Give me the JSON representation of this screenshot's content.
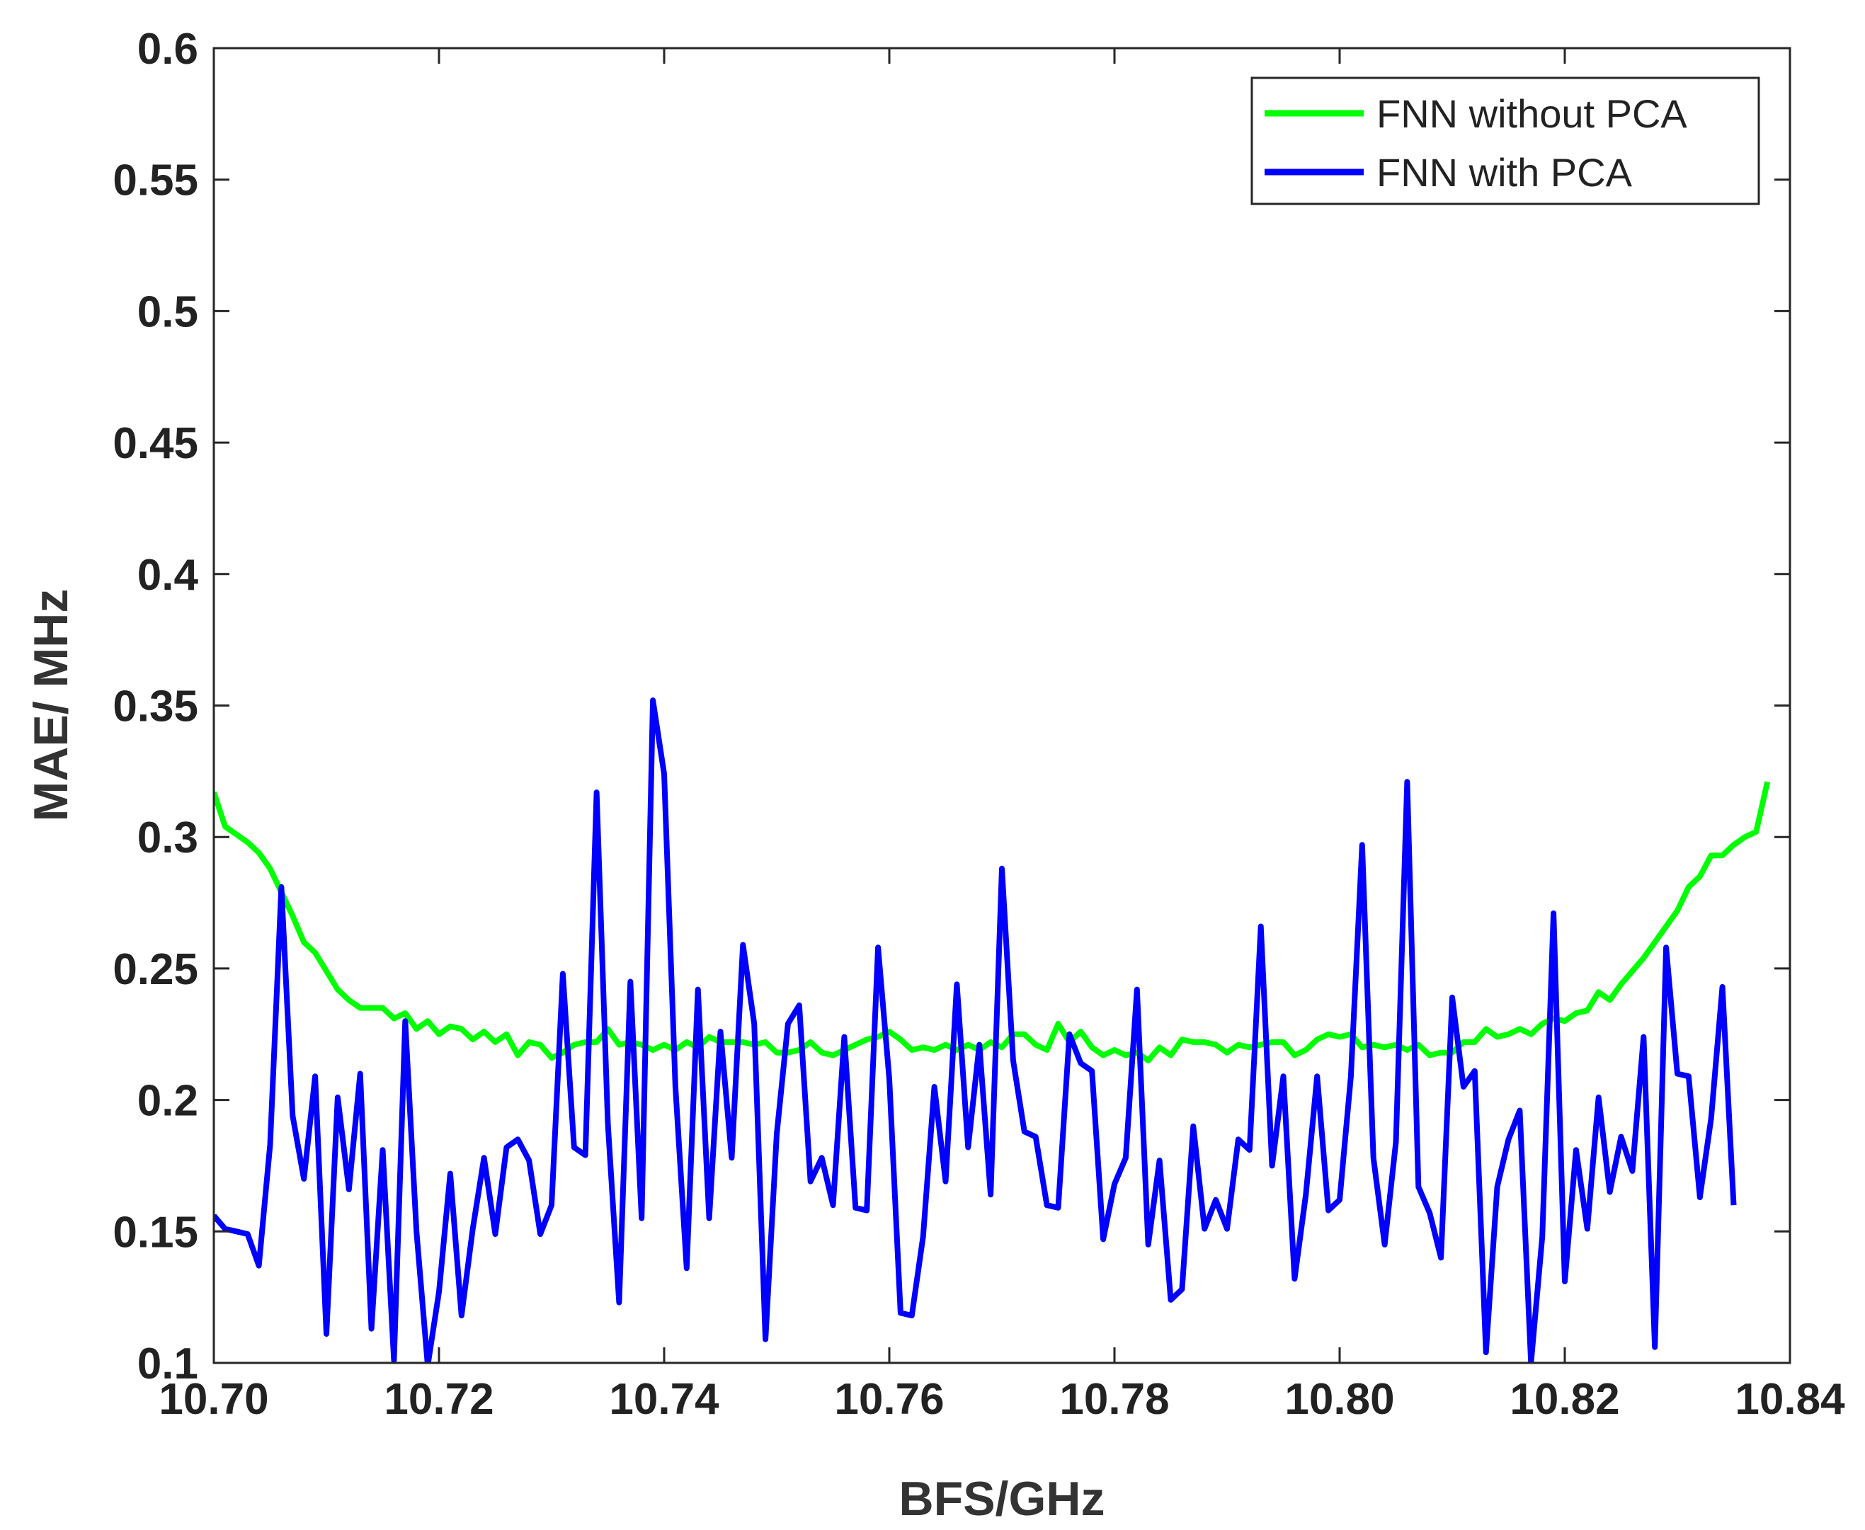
{
  "chart_data": {
    "type": "line",
    "xlabel": "BFS/GHz",
    "ylabel": "MAE/ MHz",
    "xlim": [
      10.7,
      10.84
    ],
    "ylim": [
      0.1,
      0.6
    ],
    "xticks": [
      "10.70",
      "10.72",
      "10.74",
      "10.76",
      "10.78",
      "10.80",
      "10.82",
      "10.84"
    ],
    "yticks": [
      "0.1",
      "0.15",
      "0.2",
      "0.25",
      "0.3",
      "0.35",
      "0.4",
      "0.45",
      "0.5",
      "0.55",
      "0.6"
    ],
    "grid": false,
    "legend_position": "top-right",
    "series": [
      {
        "name": "FNN without PCA",
        "color": "#00ff00",
        "points": [
          [
            10.7,
            0.317
          ],
          [
            10.701,
            0.304
          ],
          [
            10.702,
            0.301
          ],
          [
            10.703,
            0.298
          ],
          [
            10.704,
            0.294
          ],
          [
            10.705,
            0.288
          ],
          [
            10.706,
            0.279
          ],
          [
            10.707,
            0.27
          ],
          [
            10.708,
            0.26
          ],
          [
            10.709,
            0.256
          ],
          [
            10.71,
            0.249
          ],
          [
            10.711,
            0.242
          ],
          [
            10.712,
            0.238
          ],
          [
            10.713,
            0.235
          ],
          [
            10.714,
            0.235
          ],
          [
            10.715,
            0.235
          ],
          [
            10.716,
            0.231
          ],
          [
            10.717,
            0.233
          ],
          [
            10.718,
            0.227
          ],
          [
            10.719,
            0.23
          ],
          [
            10.72,
            0.225
          ],
          [
            10.721,
            0.228
          ],
          [
            10.722,
            0.227
          ],
          [
            10.723,
            0.223
          ],
          [
            10.724,
            0.226
          ],
          [
            10.725,
            0.222
          ],
          [
            10.726,
            0.225
          ],
          [
            10.727,
            0.217
          ],
          [
            10.728,
            0.222
          ],
          [
            10.729,
            0.221
          ],
          [
            10.73,
            0.216
          ],
          [
            10.731,
            0.218
          ],
          [
            10.732,
            0.221
          ],
          [
            10.733,
            0.222
          ],
          [
            10.734,
            0.222
          ],
          [
            10.735,
            0.227
          ],
          [
            10.736,
            0.221
          ],
          [
            10.737,
            0.222
          ],
          [
            10.738,
            0.221
          ],
          [
            10.739,
            0.219
          ],
          [
            10.74,
            0.221
          ],
          [
            10.741,
            0.219
          ],
          [
            10.742,
            0.222
          ],
          [
            10.743,
            0.22
          ],
          [
            10.744,
            0.224
          ],
          [
            10.745,
            0.222
          ],
          [
            10.746,
            0.222
          ],
          [
            10.747,
            0.222
          ],
          [
            10.748,
            0.221
          ],
          [
            10.749,
            0.222
          ],
          [
            10.75,
            0.218
          ],
          [
            10.751,
            0.218
          ],
          [
            10.752,
            0.219
          ],
          [
            10.753,
            0.222
          ],
          [
            10.754,
            0.218
          ],
          [
            10.755,
            0.217
          ],
          [
            10.756,
            0.219
          ],
          [
            10.757,
            0.221
          ],
          [
            10.758,
            0.223
          ],
          [
            10.759,
            0.224
          ],
          [
            10.76,
            0.226
          ],
          [
            10.761,
            0.223
          ],
          [
            10.762,
            0.219
          ],
          [
            10.763,
            0.22
          ],
          [
            10.764,
            0.219
          ],
          [
            10.765,
            0.221
          ],
          [
            10.766,
            0.219
          ],
          [
            10.767,
            0.221
          ],
          [
            10.768,
            0.219
          ],
          [
            10.769,
            0.222
          ],
          [
            10.77,
            0.22
          ],
          [
            10.771,
            0.225
          ],
          [
            10.772,
            0.225
          ],
          [
            10.773,
            0.221
          ],
          [
            10.774,
            0.219
          ],
          [
            10.775,
            0.229
          ],
          [
            10.776,
            0.222
          ],
          [
            10.777,
            0.226
          ],
          [
            10.778,
            0.22
          ],
          [
            10.779,
            0.217
          ],
          [
            10.78,
            0.219
          ],
          [
            10.781,
            0.217
          ],
          [
            10.782,
            0.218
          ],
          [
            10.783,
            0.215
          ],
          [
            10.784,
            0.22
          ],
          [
            10.785,
            0.217
          ],
          [
            10.786,
            0.223
          ],
          [
            10.787,
            0.222
          ],
          [
            10.788,
            0.222
          ],
          [
            10.789,
            0.221
          ],
          [
            10.79,
            0.218
          ],
          [
            10.791,
            0.221
          ],
          [
            10.792,
            0.22
          ],
          [
            10.793,
            0.221
          ],
          [
            10.794,
            0.222
          ],
          [
            10.795,
            0.222
          ],
          [
            10.796,
            0.217
          ],
          [
            10.797,
            0.219
          ],
          [
            10.798,
            0.223
          ],
          [
            10.799,
            0.225
          ],
          [
            10.8,
            0.224
          ],
          [
            10.801,
            0.225
          ],
          [
            10.802,
            0.22
          ],
          [
            10.803,
            0.221
          ],
          [
            10.804,
            0.22
          ],
          [
            10.805,
            0.221
          ],
          [
            10.806,
            0.219
          ],
          [
            10.807,
            0.221
          ],
          [
            10.808,
            0.217
          ],
          [
            10.809,
            0.218
          ],
          [
            10.81,
            0.218
          ],
          [
            10.811,
            0.222
          ],
          [
            10.812,
            0.222
          ],
          [
            10.813,
            0.227
          ],
          [
            10.814,
            0.224
          ],
          [
            10.815,
            0.225
          ],
          [
            10.816,
            0.227
          ],
          [
            10.817,
            0.225
          ],
          [
            10.818,
            0.229
          ],
          [
            10.819,
            0.231
          ],
          [
            10.82,
            0.23
          ],
          [
            10.821,
            0.233
          ],
          [
            10.822,
            0.234
          ],
          [
            10.823,
            0.241
          ],
          [
            10.824,
            0.238
          ],
          [
            10.825,
            0.244
          ],
          [
            10.826,
            0.249
          ],
          [
            10.827,
            0.254
          ],
          [
            10.828,
            0.26
          ],
          [
            10.829,
            0.266
          ],
          [
            10.83,
            0.272
          ],
          [
            10.831,
            0.281
          ],
          [
            10.832,
            0.285
          ],
          [
            10.833,
            0.293
          ],
          [
            10.834,
            0.293
          ],
          [
            10.835,
            0.297
          ],
          [
            10.836,
            0.3
          ],
          [
            10.837,
            0.302
          ],
          [
            10.838,
            0.321
          ]
        ]
      },
      {
        "name": "FNN with PCA",
        "color": "#0000ff",
        "points": [
          [
            10.7,
            0.156
          ],
          [
            10.701,
            0.151
          ],
          [
            10.702,
            0.15
          ],
          [
            10.703,
            0.149
          ],
          [
            10.704,
            0.137
          ],
          [
            10.705,
            0.183
          ],
          [
            10.706,
            0.281
          ],
          [
            10.707,
            0.194
          ],
          [
            10.708,
            0.17
          ],
          [
            10.709,
            0.209
          ],
          [
            10.71,
            0.111
          ],
          [
            10.711,
            0.201
          ],
          [
            10.712,
            0.166
          ],
          [
            10.713,
            0.21
          ],
          [
            10.714,
            0.113
          ],
          [
            10.715,
            0.181
          ],
          [
            10.716,
            0.101
          ],
          [
            10.717,
            0.23
          ],
          [
            10.718,
            0.15
          ],
          [
            10.719,
            0.099
          ],
          [
            10.72,
            0.127
          ],
          [
            10.721,
            0.172
          ],
          [
            10.722,
            0.118
          ],
          [
            10.723,
            0.151
          ],
          [
            10.724,
            0.178
          ],
          [
            10.725,
            0.149
          ],
          [
            10.726,
            0.182
          ],
          [
            10.727,
            0.185
          ],
          [
            10.728,
            0.177
          ],
          [
            10.729,
            0.149
          ],
          [
            10.73,
            0.16
          ],
          [
            10.731,
            0.248
          ],
          [
            10.732,
            0.182
          ],
          [
            10.733,
            0.179
          ],
          [
            10.734,
            0.317
          ],
          [
            10.735,
            0.191
          ],
          [
            10.736,
            0.123
          ],
          [
            10.737,
            0.245
          ],
          [
            10.738,
            0.155
          ],
          [
            10.739,
            0.352
          ],
          [
            10.74,
            0.324
          ],
          [
            10.741,
            0.205
          ],
          [
            10.742,
            0.136
          ],
          [
            10.743,
            0.242
          ],
          [
            10.744,
            0.155
          ],
          [
            10.745,
            0.226
          ],
          [
            10.746,
            0.178
          ],
          [
            10.747,
            0.259
          ],
          [
            10.748,
            0.229
          ],
          [
            10.749,
            0.109
          ],
          [
            10.75,
            0.187
          ],
          [
            10.751,
            0.229
          ],
          [
            10.752,
            0.236
          ],
          [
            10.753,
            0.169
          ],
          [
            10.754,
            0.178
          ],
          [
            10.755,
            0.16
          ],
          [
            10.756,
            0.224
          ],
          [
            10.757,
            0.159
          ],
          [
            10.758,
            0.158
          ],
          [
            10.759,
            0.258
          ],
          [
            10.76,
            0.208
          ],
          [
            10.761,
            0.119
          ],
          [
            10.762,
            0.118
          ],
          [
            10.763,
            0.148
          ],
          [
            10.764,
            0.205
          ],
          [
            10.765,
            0.169
          ],
          [
            10.766,
            0.244
          ],
          [
            10.767,
            0.182
          ],
          [
            10.768,
            0.221
          ],
          [
            10.769,
            0.164
          ],
          [
            10.77,
            0.288
          ],
          [
            10.771,
            0.215
          ],
          [
            10.772,
            0.188
          ],
          [
            10.773,
            0.186
          ],
          [
            10.774,
            0.16
          ],
          [
            10.775,
            0.159
          ],
          [
            10.776,
            0.225
          ],
          [
            10.777,
            0.214
          ],
          [
            10.778,
            0.211
          ],
          [
            10.779,
            0.147
          ],
          [
            10.78,
            0.168
          ],
          [
            10.781,
            0.178
          ],
          [
            10.782,
            0.242
          ],
          [
            10.783,
            0.145
          ],
          [
            10.784,
            0.177
          ],
          [
            10.785,
            0.124
          ],
          [
            10.786,
            0.128
          ],
          [
            10.787,
            0.19
          ],
          [
            10.788,
            0.151
          ],
          [
            10.789,
            0.162
          ],
          [
            10.79,
            0.151
          ],
          [
            10.791,
            0.185
          ],
          [
            10.792,
            0.181
          ],
          [
            10.793,
            0.266
          ],
          [
            10.794,
            0.175
          ],
          [
            10.795,
            0.209
          ],
          [
            10.796,
            0.132
          ],
          [
            10.797,
            0.164
          ],
          [
            10.798,
            0.209
          ],
          [
            10.799,
            0.158
          ],
          [
            10.8,
            0.162
          ],
          [
            10.801,
            0.209
          ],
          [
            10.802,
            0.297
          ],
          [
            10.803,
            0.178
          ],
          [
            10.804,
            0.145
          ],
          [
            10.805,
            0.184
          ],
          [
            10.806,
            0.321
          ],
          [
            10.807,
            0.167
          ],
          [
            10.808,
            0.157
          ],
          [
            10.809,
            0.14
          ],
          [
            10.81,
            0.239
          ],
          [
            10.811,
            0.205
          ],
          [
            10.812,
            0.211
          ],
          [
            10.813,
            0.104
          ],
          [
            10.814,
            0.167
          ],
          [
            10.815,
            0.185
          ],
          [
            10.816,
            0.196
          ],
          [
            10.817,
            0.1
          ],
          [
            10.818,
            0.148
          ],
          [
            10.819,
            0.271
          ],
          [
            10.82,
            0.131
          ],
          [
            10.821,
            0.181
          ],
          [
            10.822,
            0.151
          ],
          [
            10.823,
            0.201
          ],
          [
            10.824,
            0.165
          ],
          [
            10.825,
            0.186
          ],
          [
            10.826,
            0.173
          ],
          [
            10.827,
            0.224
          ],
          [
            10.828,
            0.106
          ],
          [
            10.829,
            0.258
          ],
          [
            10.83,
            0.21
          ],
          [
            10.831,
            0.209
          ],
          [
            10.832,
            0.163
          ],
          [
            10.833,
            0.193
          ],
          [
            10.834,
            0.243
          ],
          [
            10.835,
            0.16
          ]
        ]
      }
    ]
  }
}
